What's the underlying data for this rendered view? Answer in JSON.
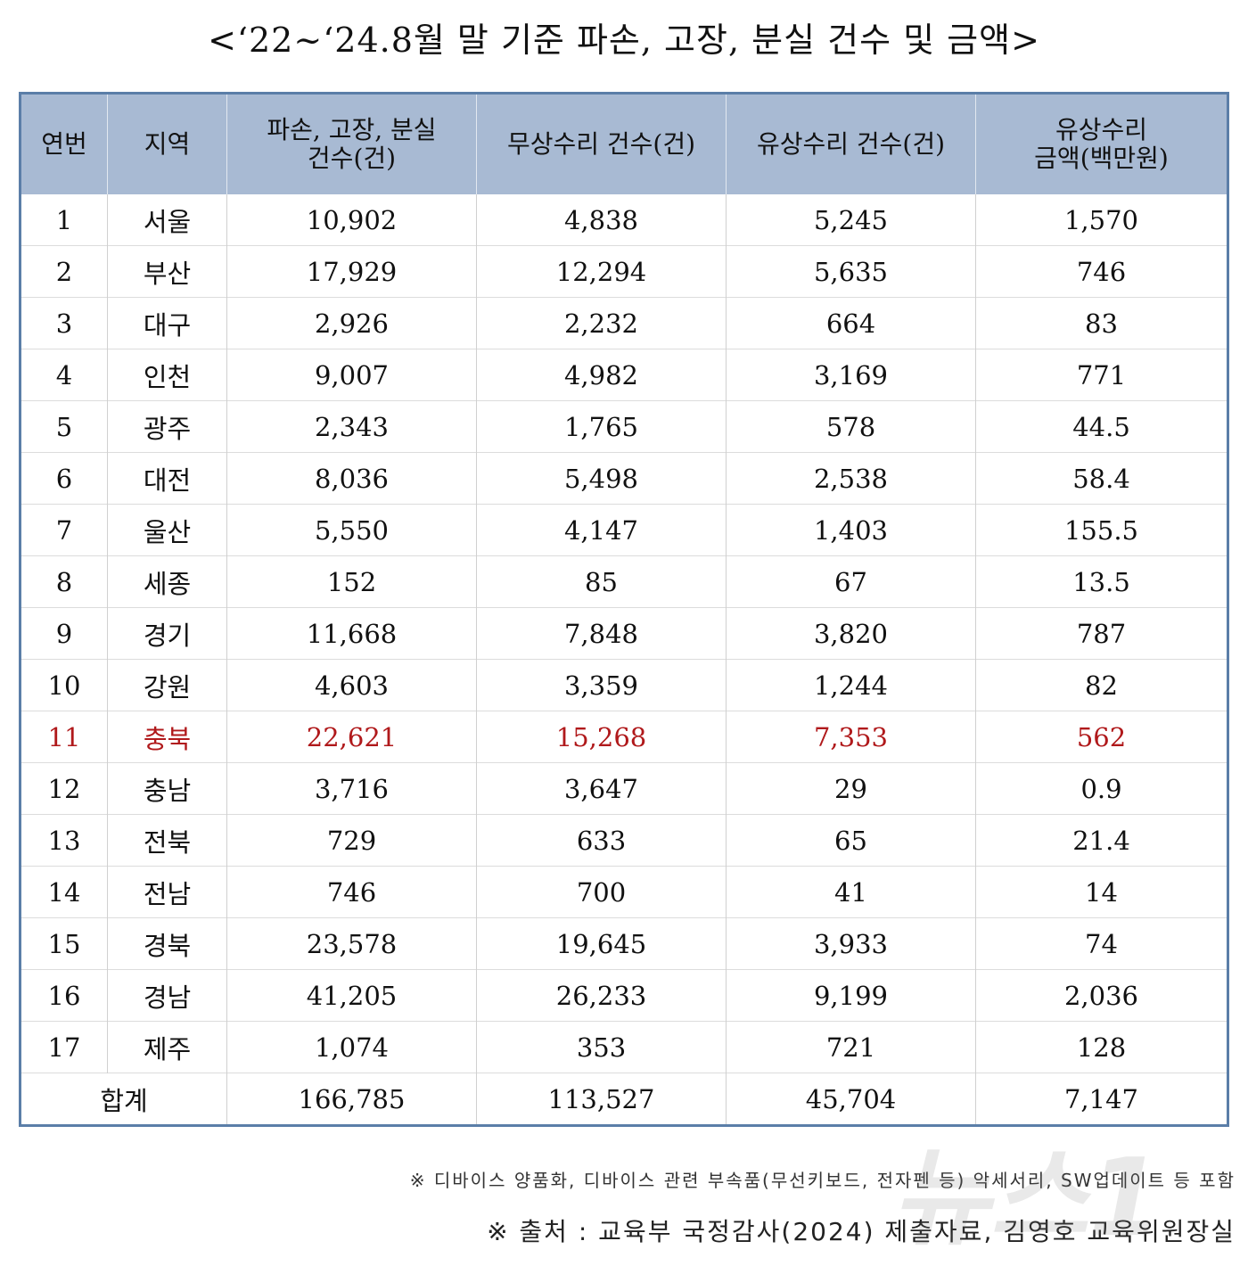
{
  "title": "<‘22~‘24.8월 말 기준 파손, 고장, 분실 건수 및 금액>",
  "headers": {
    "no": "연번",
    "region": "지역",
    "cases_l1": "파손, 고장, 분실",
    "cases_l2": "건수(건)",
    "free": "무상수리 건수(건)",
    "paid": "유상수리 건수(건)",
    "amount_l1": "유상수리",
    "amount_l2": "금액(백만원)"
  },
  "rows": [
    {
      "no": "1",
      "region": "서울",
      "cases": "10,902",
      "free": "4,838",
      "paid": "5,245",
      "amount": "1,570"
    },
    {
      "no": "2",
      "region": "부산",
      "cases": "17,929",
      "free": "12,294",
      "paid": "5,635",
      "amount": "746"
    },
    {
      "no": "3",
      "region": "대구",
      "cases": "2,926",
      "free": "2,232",
      "paid": "664",
      "amount": "83"
    },
    {
      "no": "4",
      "region": "인천",
      "cases": "9,007",
      "free": "4,982",
      "paid": "3,169",
      "amount": "771"
    },
    {
      "no": "5",
      "region": "광주",
      "cases": "2,343",
      "free": "1,765",
      "paid": "578",
      "amount": "44.5"
    },
    {
      "no": "6",
      "region": "대전",
      "cases": "8,036",
      "free": "5,498",
      "paid": "2,538",
      "amount": "58.4"
    },
    {
      "no": "7",
      "region": "울산",
      "cases": "5,550",
      "free": "4,147",
      "paid": "1,403",
      "amount": "155.5"
    },
    {
      "no": "8",
      "region": "세종",
      "cases": "152",
      "free": "85",
      "paid": "67",
      "amount": "13.5"
    },
    {
      "no": "9",
      "region": "경기",
      "cases": "11,668",
      "free": "7,848",
      "paid": "3,820",
      "amount": "787"
    },
    {
      "no": "10",
      "region": "강원",
      "cases": "4,603",
      "free": "3,359",
      "paid": "1,244",
      "amount": "82"
    },
    {
      "no": "11",
      "region": "충북",
      "cases": "22,621",
      "free": "15,268",
      "paid": "7,353",
      "amount": "562"
    },
    {
      "no": "12",
      "region": "충남",
      "cases": "3,716",
      "free": "3,647",
      "paid": "29",
      "amount": "0.9"
    },
    {
      "no": "13",
      "region": "전북",
      "cases": "729",
      "free": "633",
      "paid": "65",
      "amount": "21.4"
    },
    {
      "no": "14",
      "region": "전남",
      "cases": "746",
      "free": "700",
      "paid": "41",
      "amount": "14"
    },
    {
      "no": "15",
      "region": "경북",
      "cases": "23,578",
      "free": "19,645",
      "paid": "3,933",
      "amount": "74"
    },
    {
      "no": "16",
      "region": "경남",
      "cases": "41,205",
      "free": "26,233",
      "paid": "9,199",
      "amount": "2,036"
    },
    {
      "no": "17",
      "region": "제주",
      "cases": "1,074",
      "free": "353",
      "paid": "721",
      "amount": "128"
    }
  ],
  "total": {
    "label": "합계",
    "cases": "166,785",
    "free": "113,527",
    "paid": "45,704",
    "amount": "7,147"
  },
  "note1": "※ 디바이스 양품화, 디바이스 관련 부속품(무선키보드, 전자펜 등) 악세서리, SW업데이트 등 포함",
  "note2": "※ 출처 : 교육부 국정감사(2024) 제출자료, 김영호 교육위원장실",
  "watermark": "뉴스1",
  "colors": {
    "header_bg": "#a8bad3",
    "border": "#5b7ea8",
    "highlight": "#b0191b"
  },
  "highlight_row": "11"
}
